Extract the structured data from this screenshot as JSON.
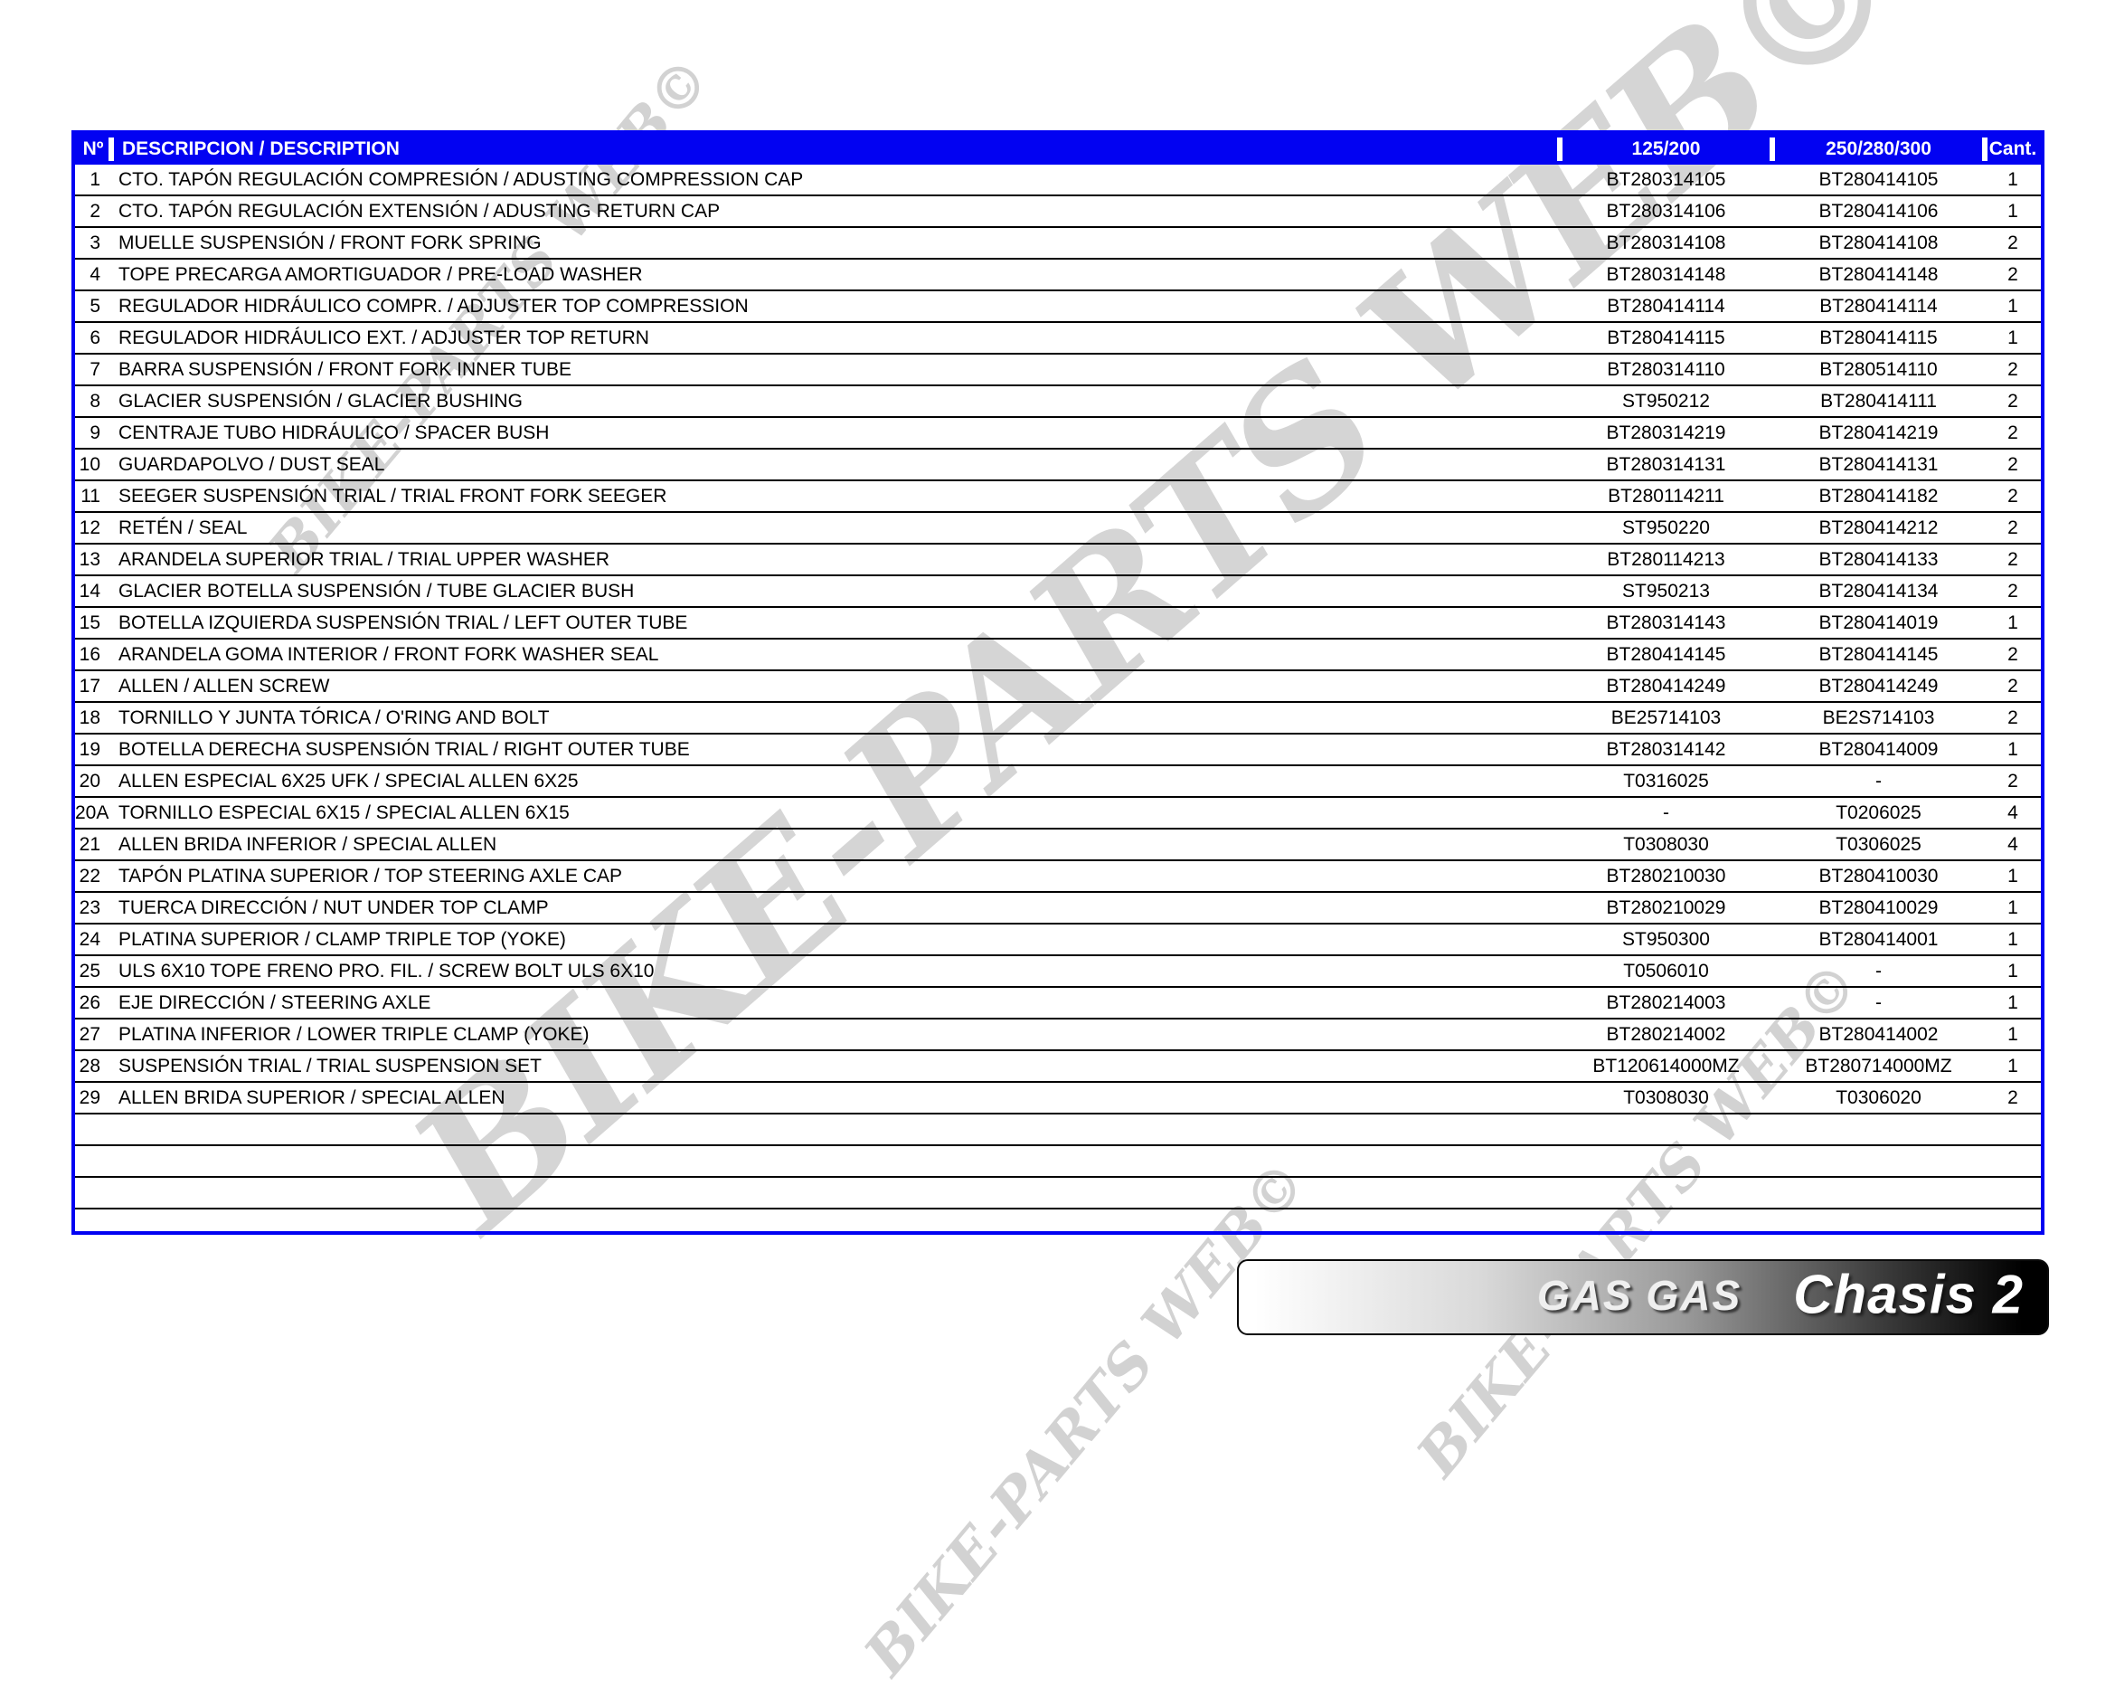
{
  "watermark": {
    "text": "BIKE-PARTS WEB©"
  },
  "banner": {
    "brand": "GAS GAS",
    "title": "Chasis 2"
  },
  "colors": {
    "header_blue": "#0202f2",
    "border_blue": "#0202f2",
    "row_line": "#000000",
    "watermark_gray": "#cecece",
    "banner_gradient_start": "#ffffff",
    "banner_gradient_end": "#000000"
  },
  "table": {
    "headers": {
      "num": "Nº",
      "description": "DESCRIPCION / DESCRIPTION",
      "col_125_200": "125/200",
      "col_250_280_300": "250/280/300",
      "qty": "Cant."
    },
    "empty_row_count": 4,
    "rows": [
      {
        "num": "1",
        "description": "CTO. TAPÓN REGULACIÓN COMPRESIÓN / ADUSTING COMPRESSION CAP",
        "ref_125_200": "BT280314105",
        "ref_250_280_300": "BT280414105",
        "qty": "1"
      },
      {
        "num": "2",
        "description": "CTO. TAPÓN REGULACIÓN EXTENSIÓN / ADUSTING RETURN CAP",
        "ref_125_200": "BT280314106",
        "ref_250_280_300": "BT280414106",
        "qty": "1"
      },
      {
        "num": "3",
        "description": "MUELLE SUSPENSIÓN / FRONT FORK SPRING",
        "ref_125_200": "BT280314108",
        "ref_250_280_300": "BT280414108",
        "qty": "2"
      },
      {
        "num": "4",
        "description": "TOPE PRECARGA AMORTIGUADOR / PRE-LOAD WASHER",
        "ref_125_200": "BT280314148",
        "ref_250_280_300": "BT280414148",
        "qty": "2"
      },
      {
        "num": "5",
        "description": "REGULADOR HIDRÁULICO COMPR. / ADJUSTER TOP COMPRESSION",
        "ref_125_200": "BT280414114",
        "ref_250_280_300": "BT280414114",
        "qty": "1"
      },
      {
        "num": "6",
        "description": "REGULADOR HIDRÁULICO EXT. / ADJUSTER TOP RETURN",
        "ref_125_200": "BT280414115",
        "ref_250_280_300": "BT280414115",
        "qty": "1"
      },
      {
        "num": "7",
        "description": "BARRA SUSPENSIÓN / FRONT FORK INNER TUBE",
        "ref_125_200": "BT280314110",
        "ref_250_280_300": "BT280514110",
        "qty": "2"
      },
      {
        "num": "8",
        "description": "GLACIER SUSPENSIÓN / GLACIER BUSHING",
        "ref_125_200": "ST950212",
        "ref_250_280_300": "BT280414111",
        "qty": "2"
      },
      {
        "num": "9",
        "description": "CENTRAJE TUBO HIDRÁULICO / SPACER BUSH",
        "ref_125_200": "BT280314219",
        "ref_250_280_300": "BT280414219",
        "qty": "2"
      },
      {
        "num": "10",
        "description": "GUARDAPOLVO / DUST SEAL",
        "ref_125_200": "BT280314131",
        "ref_250_280_300": "BT280414131",
        "qty": "2"
      },
      {
        "num": "11",
        "description": "SEEGER SUSPENSIÓN TRIAL / TRIAL FRONT FORK SEEGER",
        "ref_125_200": "BT280114211",
        "ref_250_280_300": "BT280414182",
        "qty": "2"
      },
      {
        "num": "12",
        "description": "RETÉN / SEAL",
        "ref_125_200": "ST950220",
        "ref_250_280_300": "BT280414212",
        "qty": "2"
      },
      {
        "num": "13",
        "description": "ARANDELA SUPERIOR TRIAL / TRIAL UPPER WASHER",
        "ref_125_200": "BT280114213",
        "ref_250_280_300": "BT280414133",
        "qty": "2"
      },
      {
        "num": "14",
        "description": "GLACIER BOTELLA SUSPENSIÓN / TUBE GLACIER BUSH",
        "ref_125_200": "ST950213",
        "ref_250_280_300": "BT280414134",
        "qty": "2"
      },
      {
        "num": "15",
        "description": "BOTELLA IZQUIERDA SUSPENSIÓN TRIAL / LEFT OUTER TUBE",
        "ref_125_200": "BT280314143",
        "ref_250_280_300": "BT280414019",
        "qty": "1"
      },
      {
        "num": "16",
        "description": "ARANDELA GOMA INTERIOR / FRONT FORK WASHER SEAL",
        "ref_125_200": "BT280414145",
        "ref_250_280_300": "BT280414145",
        "qty": "2"
      },
      {
        "num": "17",
        "description": "ALLEN / ALLEN SCREW",
        "ref_125_200": "BT280414249",
        "ref_250_280_300": "BT280414249",
        "qty": "2"
      },
      {
        "num": "18",
        "description": "TORNILLO Y JUNTA TÓRICA / O'RING AND BOLT",
        "ref_125_200": "BE25714103",
        "ref_250_280_300": "BE2S714103",
        "qty": "2"
      },
      {
        "num": "19",
        "description": "BOTELLA DERECHA SUSPENSIÓN TRIAL / RIGHT OUTER TUBE",
        "ref_125_200": "BT280314142",
        "ref_250_280_300": "BT280414009",
        "qty": "1"
      },
      {
        "num": "20",
        "description": "ALLEN ESPECIAL 6X25 UFK / SPECIAL ALLEN 6X25",
        "ref_125_200": "T0316025",
        "ref_250_280_300": "-",
        "qty": "2"
      },
      {
        "num": "20A",
        "description": "TORNILLO ESPECIAL 6X15 / SPECIAL ALLEN 6X15",
        "ref_125_200": "-",
        "ref_250_280_300": "T0206025",
        "qty": "4"
      },
      {
        "num": "21",
        "description": "ALLEN BRIDA INFERIOR / SPECIAL ALLEN",
        "ref_125_200": "T0308030",
        "ref_250_280_300": "T0306025",
        "qty": "4"
      },
      {
        "num": "22",
        "description": "TAPÓN PLATINA SUPERIOR / TOP STEERING AXLE CAP",
        "ref_125_200": "BT280210030",
        "ref_250_280_300": "BT280410030",
        "qty": "1"
      },
      {
        "num": "23",
        "description": "TUERCA DIRECCIÓN / NUT UNDER TOP CLAMP",
        "ref_125_200": "BT280210029",
        "ref_250_280_300": "BT280410029",
        "qty": "1"
      },
      {
        "num": "24",
        "description": "PLATINA SUPERIOR / CLAMP TRIPLE TOP (YOKE)",
        "ref_125_200": "ST950300",
        "ref_250_280_300": "BT280414001",
        "qty": "1"
      },
      {
        "num": "25",
        "description": "ULS 6X10 TOPE FRENO PRO. FIL. / SCREW BOLT ULS 6X10",
        "ref_125_200": "T0506010",
        "ref_250_280_300": "-",
        "qty": "1"
      },
      {
        "num": "26",
        "description": "EJE DIRECCIÓN / STEERING AXLE",
        "ref_125_200": "BT280214003",
        "ref_250_280_300": "-",
        "qty": "1"
      },
      {
        "num": "27",
        "description": "PLATINA INFERIOR / LOWER TRIPLE CLAMP (YOKE)",
        "ref_125_200": "BT280214002",
        "ref_250_280_300": "BT280414002",
        "qty": "1"
      },
      {
        "num": "28",
        "description": "SUSPENSIÓN TRIAL / TRIAL SUSPENSION SET",
        "ref_125_200": "BT120614000MZ",
        "ref_250_280_300": "BT280714000MZ",
        "qty": "1"
      },
      {
        "num": "29",
        "description": "ALLEN BRIDA SUPERIOR / SPECIAL ALLEN",
        "ref_125_200": "T0308030",
        "ref_250_280_300": "T0306020",
        "qty": "2"
      }
    ]
  }
}
